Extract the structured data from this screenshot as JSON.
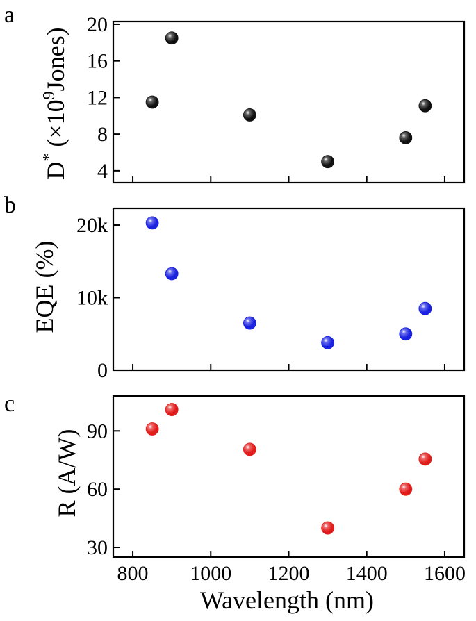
{
  "chart_data": [
    {
      "type": "scatter",
      "panel_label": "a",
      "ylabel_main": "D",
      "ylabel_star": "*",
      "ylabel_rest": " (×10",
      "ylabel_exp": "9",
      "ylabel_unit": "Jones)",
      "x": [
        850,
        900,
        1100,
        1300,
        1500,
        1550
      ],
      "y": [
        11.5,
        18.5,
        10.1,
        5.0,
        7.6,
        11.1
      ],
      "xlim": [
        750,
        1650
      ],
      "ylim": [
        2.7,
        20.3
      ],
      "yticks": [
        4,
        8,
        12,
        16,
        20
      ],
      "ytick_labels": [
        "4",
        "8",
        "12",
        "16",
        "20"
      ],
      "marker_color": "#111111",
      "grid": false
    },
    {
      "type": "scatter",
      "panel_label": "b",
      "ylabel": "EQE (%)",
      "x": [
        850,
        900,
        1100,
        1300,
        1500,
        1550
      ],
      "y": [
        20300,
        13300,
        6500,
        3800,
        5000,
        8500
      ],
      "xlim": [
        750,
        1650
      ],
      "ylim": [
        0,
        22300
      ],
      "yticks": [
        0,
        10000,
        20000
      ],
      "ytick_labels": [
        "0",
        "10k",
        "20k"
      ],
      "marker_color": "#1a22e0",
      "grid": false
    },
    {
      "type": "scatter",
      "panel_label": "c",
      "ylabel": "R (A/W)",
      "x": [
        850,
        900,
        1100,
        1300,
        1500,
        1550
      ],
      "y": [
        91,
        101,
        80.5,
        40,
        60,
        75.5
      ],
      "xlim": [
        750,
        1650
      ],
      "ylim": [
        25,
        108
      ],
      "yticks": [
        30,
        60,
        90
      ],
      "ytick_labels": [
        "30",
        "60",
        "90"
      ],
      "xticks": [
        800,
        1000,
        1200,
        1400,
        1600
      ],
      "xtick_labels": [
        "800",
        "1000",
        "1200",
        "1400",
        "1600"
      ],
      "xlabel": "Wavelength (nm)",
      "marker_color": "#e21b1b",
      "grid": false
    }
  ]
}
